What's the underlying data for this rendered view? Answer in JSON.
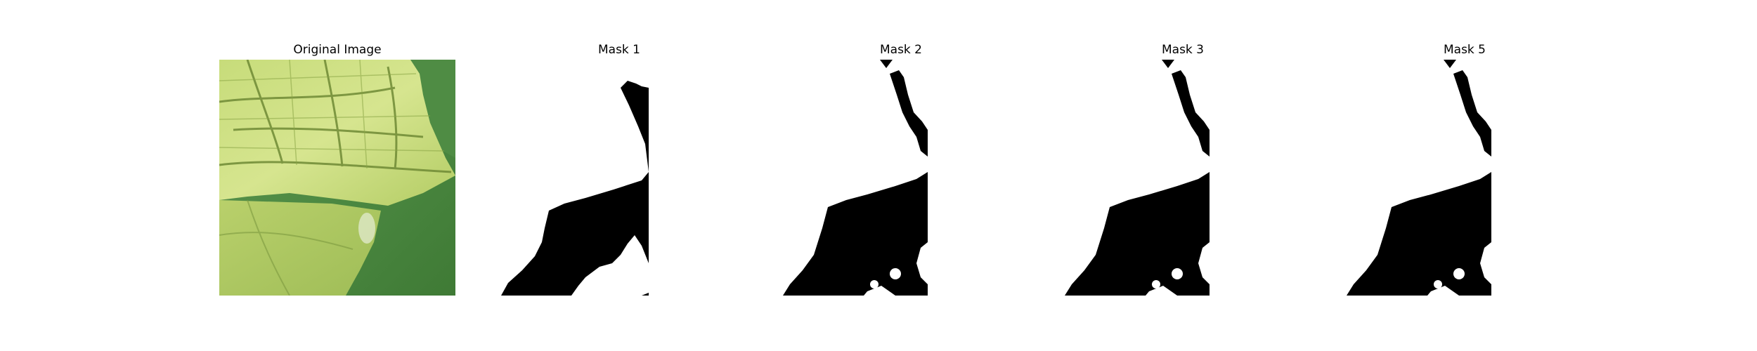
{
  "figure": {
    "panels": [
      {
        "title": "Original Image",
        "kind": "photo",
        "subject": "leaf"
      },
      {
        "title": "Mask 1",
        "kind": "mask",
        "colors": {
          "background": "#000000",
          "foreground": "#ffffff"
        }
      },
      {
        "title": "Mask 2",
        "kind": "mask",
        "colors": {
          "background": "#000000",
          "foreground": "#ffffff"
        }
      },
      {
        "title": "Mask 3",
        "kind": "mask",
        "colors": {
          "background": "#000000",
          "foreground": "#ffffff"
        }
      },
      {
        "title": "Mask 5",
        "kind": "mask",
        "colors": {
          "background": "#000000",
          "foreground": "#ffffff"
        }
      }
    ],
    "colors": {
      "leaf_light": "#d6e58f",
      "leaf_mid": "#b9d06b",
      "leaf_vein": "#6f8a35",
      "bg_green_dark": "#3f7a35",
      "bg_green_mid": "#5e9650"
    }
  }
}
